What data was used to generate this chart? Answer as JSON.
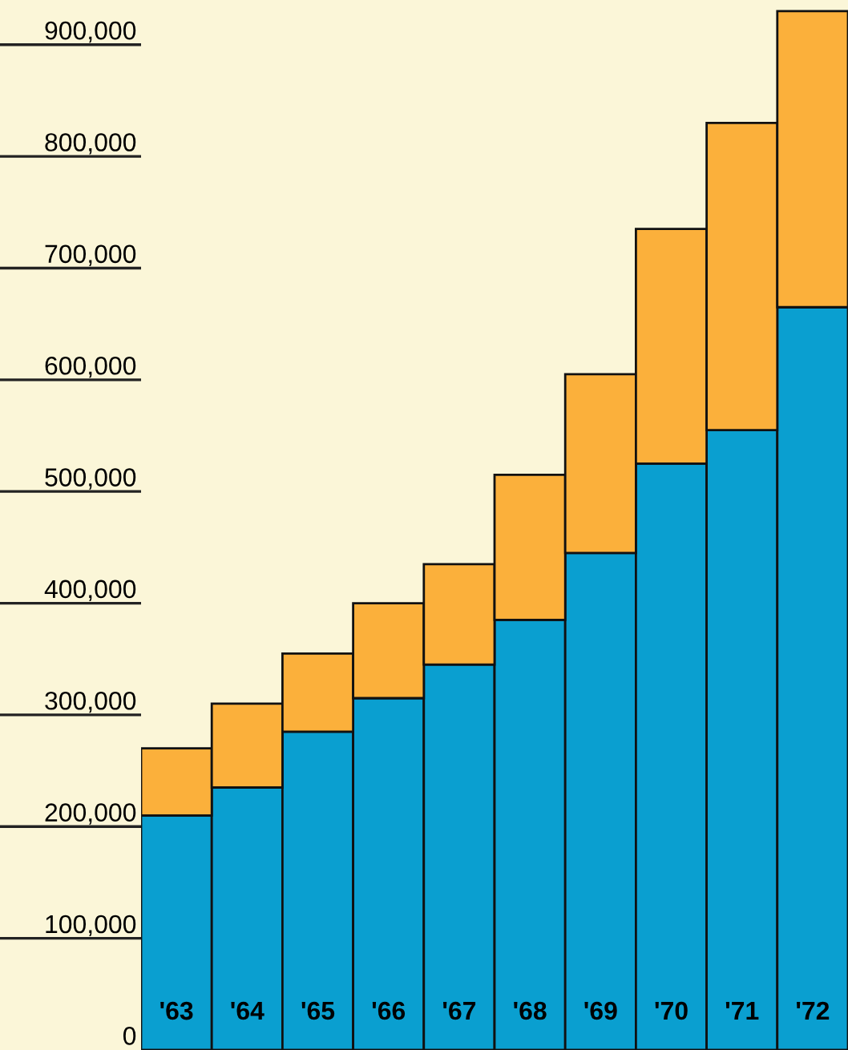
{
  "chart_data": {
    "type": "bar",
    "stacked": true,
    "categories": [
      "'63",
      "'64",
      "'65",
      "'66",
      "'67",
      "'68",
      "'69",
      "'70",
      "'71",
      "'72"
    ],
    "series": [
      {
        "color": "#0a9fd0",
        "values": [
          210000,
          235000,
          285000,
          315000,
          345000,
          385000,
          445000,
          525000,
          555000,
          665000
        ]
      },
      {
        "color": "#fbb03b",
        "values": [
          60000,
          75000,
          70000,
          85000,
          90000,
          130000,
          160000,
          210000,
          275000,
          265000
        ]
      }
    ],
    "ylim": [
      0,
      940000
    ],
    "yticks": [
      {
        "value": 0,
        "label": "0"
      },
      {
        "value": 100000,
        "label": "100,000"
      },
      {
        "value": 200000,
        "label": "200,000"
      },
      {
        "value": 300000,
        "label": "300,000"
      },
      {
        "value": 400000,
        "label": "400,000"
      },
      {
        "value": 500000,
        "label": "500,000"
      },
      {
        "value": 600000,
        "label": "600,000"
      },
      {
        "value": 700000,
        "label": "700,000"
      },
      {
        "value": 800000,
        "label": "800,000"
      },
      {
        "value": 900000,
        "label": "900,000"
      }
    ],
    "grid": false,
    "legend": false
  }
}
